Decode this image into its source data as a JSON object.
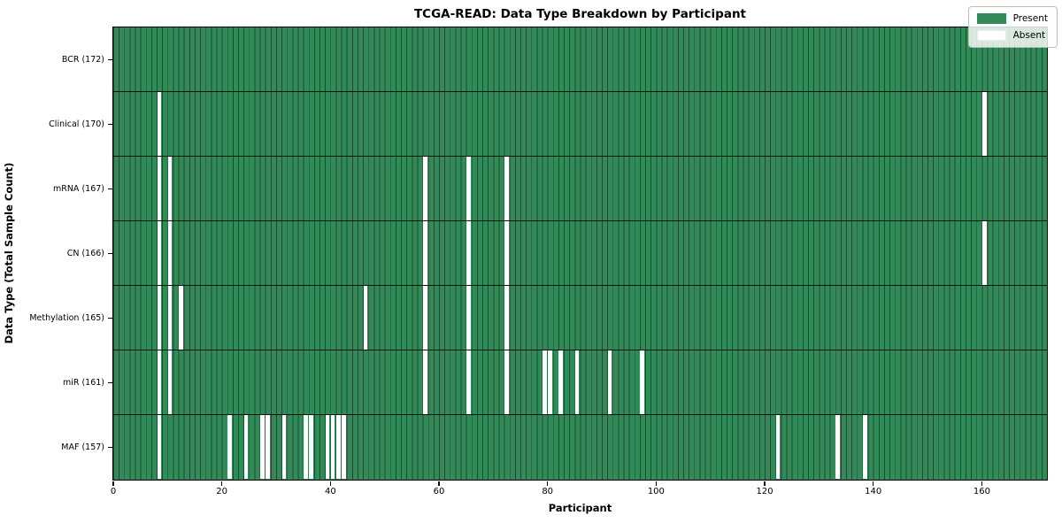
{
  "chart_data": {
    "type": "heatmap",
    "title": "TCGA-READ: Data Type Breakdown by Participant",
    "xlabel": "Participant",
    "ylabel": "Data Type (Total Sample Count)",
    "n_participants": 172,
    "x_range": [
      0,
      172
    ],
    "x_ticks": [
      0,
      20,
      40,
      60,
      80,
      100,
      120,
      140,
      160
    ],
    "grid": "per-cell vertical separators, black row separators",
    "legend_position": "upper right",
    "legend": {
      "present_label": "Present",
      "absent_label": "Absent"
    },
    "colors": {
      "present": "#318a58",
      "absent": "#ffffff"
    },
    "rows": [
      {
        "label": "BCR",
        "total_samples": 172,
        "display": "BCR (172)",
        "absent_participants": []
      },
      {
        "label": "Clinical",
        "total_samples": 170,
        "display": "Clinical (170)",
        "absent_participants": [
          8,
          160
        ]
      },
      {
        "label": "mRNA",
        "total_samples": 167,
        "display": "mRNA (167)",
        "absent_participants": [
          8,
          10,
          57,
          65,
          72
        ]
      },
      {
        "label": "CN",
        "total_samples": 166,
        "display": "CN (166)",
        "absent_participants": [
          8,
          10,
          57,
          65,
          72,
          160
        ]
      },
      {
        "label": "Methylation",
        "total_samples": 165,
        "display": "Methylation (165)",
        "absent_participants": [
          8,
          10,
          12,
          46,
          57,
          65,
          72
        ]
      },
      {
        "label": "miR",
        "total_samples": 161,
        "display": "miR (161)",
        "absent_participants": [
          8,
          10,
          57,
          65,
          72,
          79,
          80,
          82,
          85,
          91,
          97
        ]
      },
      {
        "label": "MAF",
        "total_samples": 157,
        "display": "MAF (157)",
        "absent_participants": [
          8,
          21,
          24,
          27,
          28,
          31,
          35,
          36,
          39,
          40,
          41,
          42,
          122,
          133,
          138
        ]
      }
    ]
  }
}
